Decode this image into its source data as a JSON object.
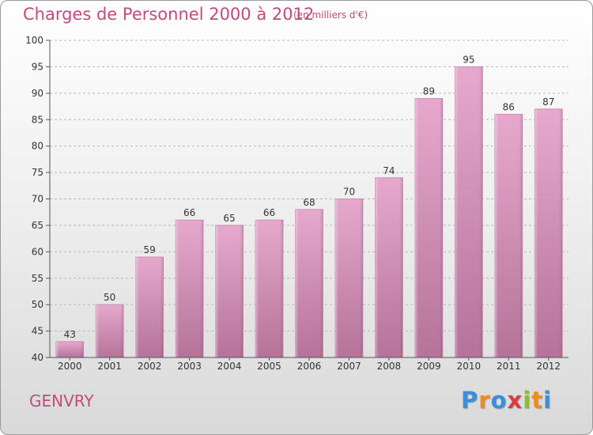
{
  "chart_data": {
    "type": "bar",
    "title": "Charges de Personnel 2000 à 2012",
    "subtitle": "(en milliers d'€)",
    "categories": [
      "2000",
      "2001",
      "2002",
      "2003",
      "2004",
      "2005",
      "2006",
      "2007",
      "2008",
      "2009",
      "2010",
      "2011",
      "2012"
    ],
    "values": [
      43,
      50,
      59,
      66,
      65,
      66,
      68,
      70,
      74,
      89,
      95,
      86,
      87
    ],
    "data_labels": [
      "43",
      "50",
      "59",
      "66",
      "65",
      "66",
      "68",
      "70",
      "74",
      "89",
      "95",
      "86",
      "87"
    ],
    "ylim": [
      40,
      100
    ],
    "yticks": [
      40,
      45,
      50,
      55,
      60,
      65,
      70,
      75,
      80,
      85,
      90,
      95,
      100
    ],
    "grid": "horizontal-dashed",
    "xlabel": "",
    "ylabel": "",
    "colors": {
      "bar_top": "#e6a9cd",
      "bar_bottom": "#b5739a",
      "title": "#c34a7c"
    }
  },
  "place_name": "GENVRY",
  "logo": {
    "letters": [
      "P",
      "r",
      "o",
      "x",
      "i",
      "t",
      "i"
    ],
    "colors": [
      "#3a8fd8",
      "#f08c1e",
      "#3a8fd8",
      "#d93d3d",
      "#8cbf26",
      "#f08c1e",
      "#3a8fd8"
    ]
  }
}
